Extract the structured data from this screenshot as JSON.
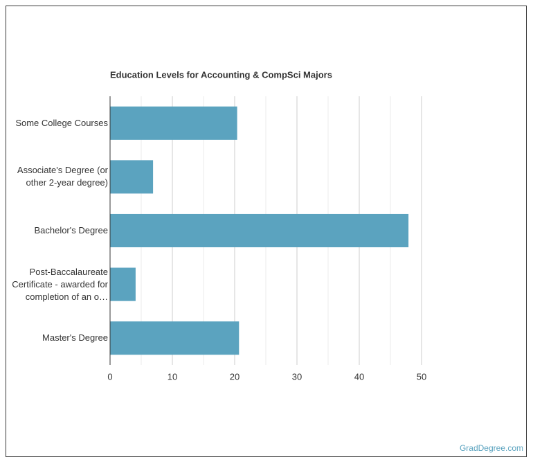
{
  "chart_data": {
    "type": "bar",
    "orientation": "horizontal",
    "title": "Education Levels for Accounting & CompSci Majors",
    "categories": [
      "Some College Courses",
      "Associate's Degree (or other 2-year degree)",
      "Bachelor's Degree",
      "Post-Baccalaureate Certificate - awarded for completion of an o…",
      "Master's Degree"
    ],
    "values": [
      20.4,
      6.9,
      47.9,
      4.1,
      20.7
    ],
    "color": "#5ba3bf",
    "xlim": [
      0,
      50
    ],
    "xticks": [
      0,
      10,
      20,
      30,
      40,
      50
    ],
    "xminorticks": [
      5,
      15,
      25,
      35,
      45
    ],
    "grid": true
  },
  "footer": {
    "source": "GradDegree.com"
  }
}
